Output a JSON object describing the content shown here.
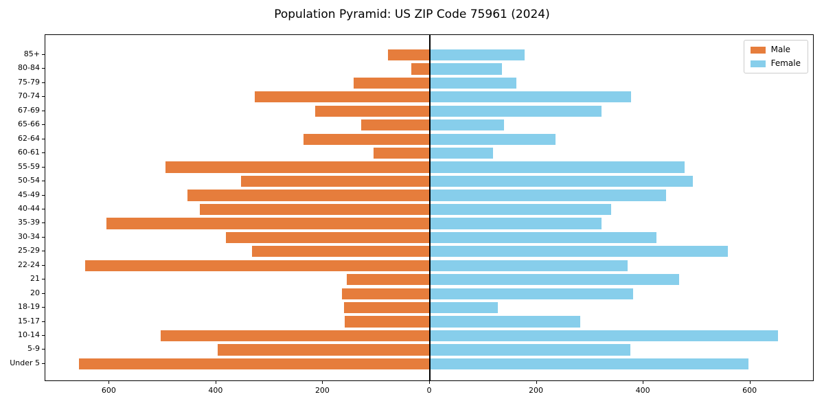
{
  "chart_data": {
    "type": "bar",
    "variant": "population-pyramid",
    "title": "Population Pyramid: US ZIP Code 75961 (2024)",
    "xlabel": "",
    "ylabel": "",
    "grid": false,
    "legend_position": "upper right",
    "xlim": [
      -720,
      720
    ],
    "x_tick_positions": [
      -600,
      -400,
      -200,
      0,
      200,
      400,
      600
    ],
    "x_tick_labels": [
      "600",
      "400",
      "200",
      "0",
      "200",
      "400",
      "600"
    ],
    "categories": [
      "85+",
      "80-84",
      "75-79",
      "70-74",
      "67-69",
      "65-66",
      "62-64",
      "60-61",
      "55-59",
      "50-54",
      "45-49",
      "40-44",
      "35-39",
      "30-34",
      "25-29",
      "22-24",
      "21",
      "20",
      "18-19",
      "15-17",
      "10-14",
      "5-9",
      "Under 5"
    ],
    "series": [
      {
        "name": "Male",
        "side": "left",
        "color": "#e67d3c",
        "values": [
          79,
          35,
          143,
          328,
          215,
          129,
          237,
          106,
          495,
          353,
          454,
          431,
          605,
          382,
          333,
          645,
          155,
          165,
          161,
          159,
          504,
          397,
          657
        ]
      },
      {
        "name": "Female",
        "side": "right",
        "color": "#87ceeb",
        "values": [
          177,
          135,
          162,
          377,
          322,
          139,
          235,
          118,
          477,
          493,
          442,
          339,
          322,
          424,
          558,
          370,
          467,
          380,
          127,
          281,
          652,
          376,
          596
        ]
      }
    ],
    "axis_color": "#000000",
    "zero_line_color": "#000000"
  }
}
